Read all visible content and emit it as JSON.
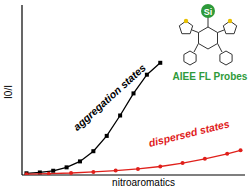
{
  "chart_data": {
    "type": "line",
    "x_label": "nitroaromatics",
    "y_label": "I0/I",
    "xlim": [
      0,
      10
    ],
    "ylim": [
      0,
      10
    ],
    "xticks": [],
    "yticks": [],
    "tick_labels": false,
    "grid": false,
    "series": [
      {
        "name": "aggregation states",
        "color": "#000000",
        "marker": "square",
        "x": [
          0.2,
          0.8,
          1.4,
          2.0,
          2.6,
          3.2,
          3.8,
          4.4,
          5.0,
          5.6,
          6.2
        ],
        "values": [
          0.1,
          0.15,
          0.25,
          0.45,
          0.8,
          1.4,
          2.3,
          3.5,
          4.8,
          5.9,
          6.6
        ]
      },
      {
        "name": "dispersed states",
        "color": "#e0201b",
        "marker": "circle",
        "x": [
          0.2,
          1.2,
          2.2,
          3.2,
          4.2,
          5.2,
          6.2,
          7.2,
          8.2,
          9.2,
          9.8
        ],
        "values": [
          0.05,
          0.08,
          0.12,
          0.18,
          0.26,
          0.36,
          0.5,
          0.7,
          0.95,
          1.25,
          1.45
        ]
      }
    ],
    "molecule": {
      "atom": "Si",
      "caption": "AIEE FL Probes",
      "color": "#2e9a3a"
    }
  }
}
